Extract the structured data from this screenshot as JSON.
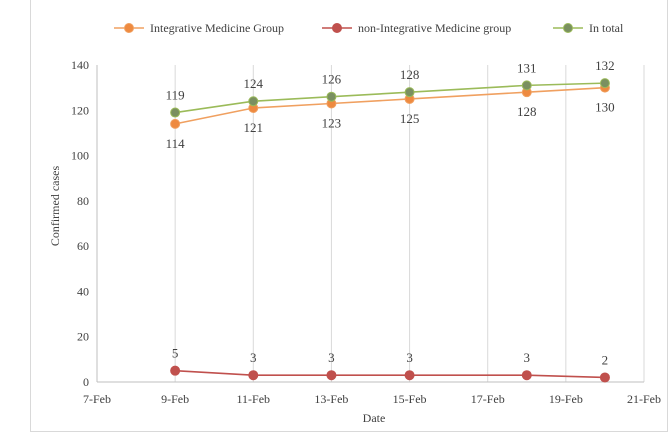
{
  "chart_data": {
    "type": "line",
    "title": "",
    "xlabel": "Date",
    "ylabel": "Confirmed cases",
    "ylim": [
      0,
      140
    ],
    "yticks": [
      0,
      20,
      40,
      60,
      80,
      100,
      120,
      140
    ],
    "x_axis": {
      "type": "date",
      "range": [
        "2020-02-07",
        "2020-02-21"
      ],
      "tick_dates": [
        "2020-02-07",
        "2020-02-09",
        "2020-02-11",
        "2020-02-13",
        "2020-02-15",
        "2020-02-17",
        "2020-02-19",
        "2020-02-21"
      ],
      "tick_labels": [
        "7-Feb",
        "9-Feb",
        "11-Feb",
        "13-Feb",
        "15-Feb",
        "17-Feb",
        "19-Feb",
        "21-Feb"
      ]
    },
    "grid": {
      "vertical": true,
      "horizontal": false
    },
    "legend_position": "top",
    "series": [
      {
        "name": "Integrative Medicine Group",
        "color": "#f0a060",
        "marker_color": "#ee8a40",
        "label_position": "below",
        "x": [
          "2020-02-09",
          "2020-02-11",
          "2020-02-13",
          "2020-02-15",
          "2020-02-18",
          "2020-02-20"
        ],
        "values": [
          114,
          121,
          123,
          125,
          128,
          130
        ]
      },
      {
        "name": "non-Integrative Medicine group",
        "color": "#c0504d",
        "marker_color": "#c0504d",
        "label_position": "above",
        "x": [
          "2020-02-09",
          "2020-02-11",
          "2020-02-13",
          "2020-02-15",
          "2020-02-18",
          "2020-02-20"
        ],
        "values": [
          5,
          3,
          3,
          3,
          3,
          2
        ]
      },
      {
        "name": "In total",
        "color": "#9bbb59",
        "marker_color": "#7a9060",
        "label_position": "above",
        "x": [
          "2020-02-09",
          "2020-02-11",
          "2020-02-13",
          "2020-02-15",
          "2020-02-18",
          "2020-02-20"
        ],
        "values": [
          119,
          124,
          126,
          128,
          131,
          132
        ]
      }
    ]
  }
}
